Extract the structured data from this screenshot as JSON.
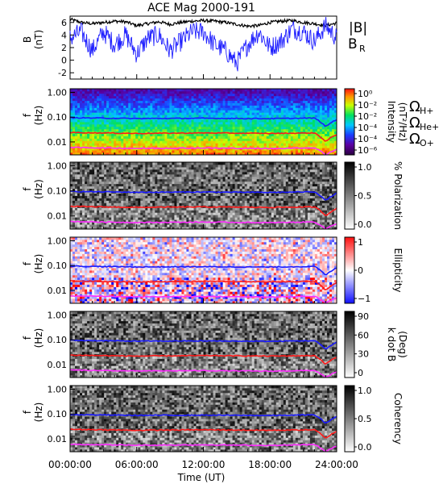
{
  "title": "ACE Mag 2000-191",
  "xlabel": "Time (UT)",
  "xticks": [
    "00:00:00",
    "06:00:00",
    "12:00:00",
    "18:00:00",
    "24:00:00"
  ],
  "colors": {
    "B_total": "#000000",
    "B_R": "#1f1fff",
    "cyclotron_H": "#1a1aff",
    "cyclotron_He": "#ff1a1a",
    "cyclotron_O": "#ff2dff"
  },
  "legend": {
    "B": "|B|",
    "BR": "B",
    "BR_sub": "R",
    "omega": "Ω",
    "sub_H": "H+",
    "sub_He": "He+",
    "sub_O": "O+"
  },
  "panels": [
    {
      "id": "b-field",
      "ylabel": "B",
      "yunit": "(nT)",
      "yticks": [
        "6",
        "4",
        "2",
        "0",
        "-2"
      ]
    },
    {
      "id": "intensity",
      "ylabel": "f",
      "yunit": "(Hz)",
      "yticks": [
        "1.00",
        "0.10",
        "0.01"
      ],
      "cbar_title": "Intensity",
      "cbar_unit": "(nT²/Hz)",
      "cbar_ticks": [
        "10⁰",
        "10⁻²",
        "10⁻²",
        "10⁻⁴",
        "10⁻⁴",
        "10⁻⁶"
      ],
      "cbar_type": "rainbow"
    },
    {
      "id": "polarization",
      "ylabel": "f",
      "yunit": "(Hz)",
      "yticks": [
        "1.00",
        "0.10",
        "0.01"
      ],
      "cbar_title": "% Polarization",
      "cbar_unit": "",
      "cbar_ticks": [
        "1.0",
        "0.5",
        "0.0"
      ],
      "cbar_type": "gray"
    },
    {
      "id": "ellipticity",
      "ylabel": "f",
      "yunit": "(Hz)",
      "yticks": [
        "1.00",
        "0.10",
        "0.01"
      ],
      "cbar_title": "Ellipticity",
      "cbar_unit": "",
      "cbar_ticks": [
        "1",
        "0",
        "−1"
      ],
      "cbar_type": "bwr"
    },
    {
      "id": "k-dot-b",
      "ylabel": "f",
      "yunit": "(Hz)",
      "yticks": [
        "1.00",
        "0.10",
        "0.01"
      ],
      "cbar_title": "k dot B",
      "cbar_unit": "(Deg)",
      "cbar_ticks": [
        "90",
        "60",
        "30",
        "0"
      ],
      "cbar_type": "gray"
    },
    {
      "id": "coherency",
      "ylabel": "f",
      "yunit": "(Hz)",
      "yticks": [
        "1.00",
        "0.10",
        "0.01"
      ],
      "cbar_title": "Coherency",
      "cbar_unit": "",
      "cbar_ticks": [
        "1.0",
        "0.5",
        "0.0"
      ],
      "cbar_type": "gray"
    }
  ],
  "chart_data": [
    {
      "type": "line",
      "title": "ACE Mag 2000-191",
      "xlabel": "Time (UT)",
      "ylabel": "B (nT)",
      "xlim": [
        "00:00",
        "24:00"
      ],
      "ylim": [
        -3,
        7
      ],
      "x": [
        "00:00",
        "01:00",
        "02:00",
        "03:00",
        "04:00",
        "05:00",
        "06:00",
        "07:00",
        "08:00",
        "09:00",
        "10:00",
        "11:00",
        "12:00",
        "13:00",
        "14:00",
        "15:00",
        "16:00",
        "17:00",
        "18:00",
        "19:00",
        "20:00",
        "21:00",
        "22:00",
        "23:00",
        "24:00"
      ],
      "series": [
        {
          "name": "|B|",
          "values": [
            6.5,
            6.0,
            5.8,
            6.0,
            6.2,
            6.1,
            5.5,
            5.8,
            6.1,
            5.7,
            6.0,
            6.2,
            6.3,
            6.2,
            6.0,
            5.7,
            5.4,
            5.5,
            6.0,
            6.2,
            6.3,
            6.0,
            5.8,
            5.5,
            5.9
          ]
        },
        {
          "name": "B_R",
          "values": [
            3.5,
            4.5,
            1.5,
            4.5,
            2.5,
            4.0,
            1.0,
            3.5,
            4.0,
            1.5,
            3.0,
            4.5,
            4.5,
            2.5,
            1.5,
            -0.5,
            2.5,
            4.5,
            2.0,
            3.0,
            5.0,
            4.5,
            3.0,
            5.5,
            3.5
          ]
        }
      ]
    },
    {
      "type": "heatmap",
      "title": "Intensity",
      "ylabel": "f (Hz)",
      "yscale": "log",
      "ylim": [
        0.003,
        1.4
      ],
      "xlim": [
        "00:00",
        "24:00"
      ],
      "overlay_lines": [
        {
          "name": "ΩH+",
          "x": [
            "00:00",
            "06:00",
            "12:00",
            "18:00",
            "22:00",
            "23:00",
            "24:00"
          ],
          "values": [
            0.095,
            0.088,
            0.09,
            0.087,
            0.092,
            0.04,
            0.08
          ]
        },
        {
          "name": "ΩHe+",
          "x": [
            "00:00",
            "06:00",
            "12:00",
            "18:00",
            "22:00",
            "23:00",
            "24:00"
          ],
          "values": [
            0.024,
            0.022,
            0.023,
            0.022,
            0.023,
            0.01,
            0.02
          ]
        },
        {
          "name": "ΩO+",
          "x": [
            "00:00",
            "06:00",
            "12:00",
            "18:00",
            "22:00",
            "23:00",
            "24:00"
          ],
          "values": [
            0.006,
            0.0055,
            0.0057,
            0.0054,
            0.0058,
            0.003,
            0.005
          ]
        }
      ]
    },
    {
      "type": "heatmap",
      "title": "% Polarization",
      "ylabel": "f (Hz)",
      "yscale": "log",
      "ylim": [
        0.003,
        1.4
      ],
      "zlim": [
        0.0,
        1.0
      ]
    },
    {
      "type": "heatmap",
      "title": "Ellipticity",
      "ylabel": "f (Hz)",
      "yscale": "log",
      "ylim": [
        0.003,
        1.4
      ],
      "zlim": [
        -1,
        1
      ]
    },
    {
      "type": "heatmap",
      "title": "k dot B (Deg)",
      "ylabel": "f (Hz)",
      "yscale": "log",
      "ylim": [
        0.003,
        1.4
      ],
      "zlim": [
        0,
        90
      ]
    },
    {
      "type": "heatmap",
      "title": "Coherency",
      "ylabel": "f (Hz)",
      "yscale": "log",
      "ylim": [
        0.003,
        1.4
      ],
      "zlim": [
        0.0,
        1.0
      ]
    }
  ]
}
